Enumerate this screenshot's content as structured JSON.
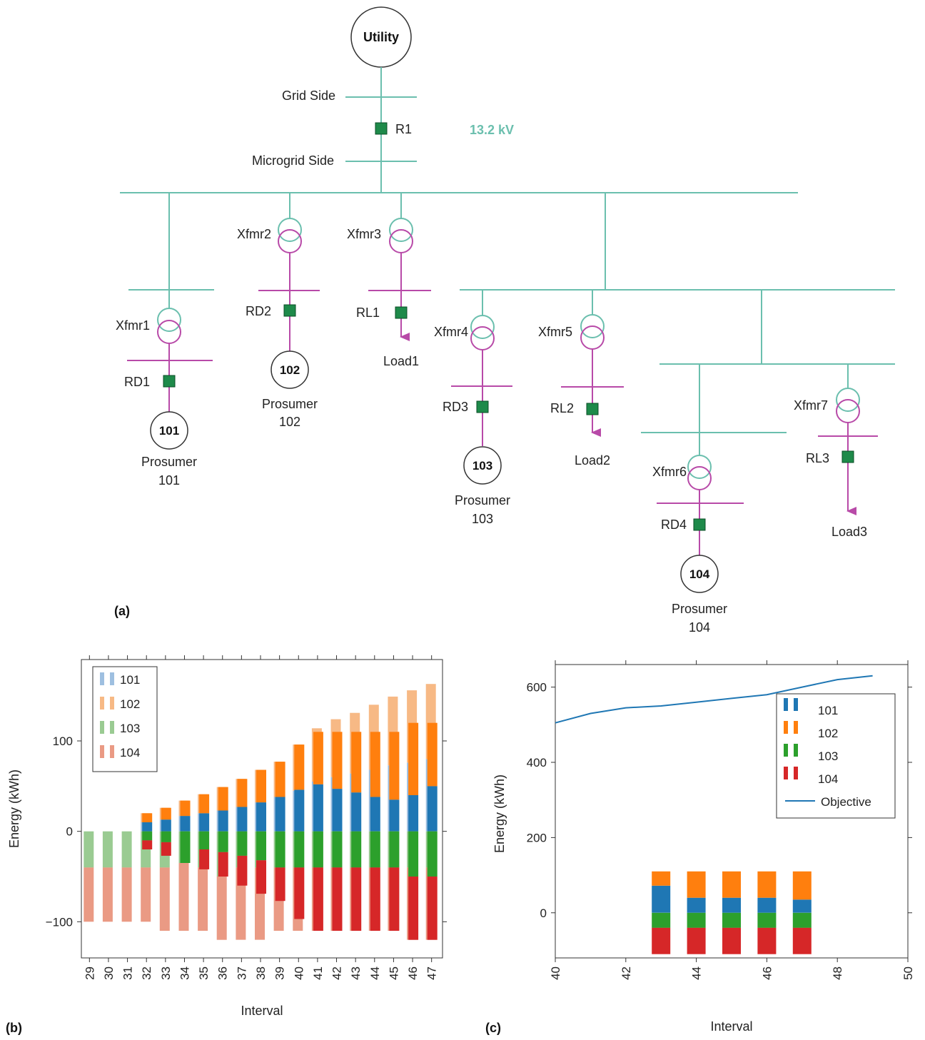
{
  "diagram": {
    "utility_label": "Utility",
    "grid_side_label": "Grid Side",
    "microgrid_side_label": "Microgrid Side",
    "r1_label": "R1",
    "voltage_label": "13.2 kV",
    "transformers": [
      "Xfmr1",
      "Xfmr2",
      "Xfmr3",
      "Xfmr4",
      "Xfmr5",
      "Xfmr6",
      "Xfmr7"
    ],
    "relays": [
      "RD1",
      "RD2",
      "RL1",
      "RD3",
      "RL2",
      "RD4",
      "RL3"
    ],
    "loads": [
      "Load1",
      "Load2",
      "Load3"
    ],
    "prosumer_word": "Prosumer",
    "prosumer_ids": [
      "101",
      "102",
      "103",
      "104"
    ],
    "panel_label": "(a)",
    "colors": {
      "bus": "#6bbfae",
      "branch": "#b84aa8",
      "relay": "#1e8a4a"
    }
  },
  "chart_data": [
    {
      "type": "bar",
      "panel_label": "(b)",
      "xlabel": "Interval",
      "ylabel": "Energy (kWh)",
      "ylim": [
        -140,
        190
      ],
      "yticks": [
        -100,
        0,
        100
      ],
      "ytick_labels": [
        "−100",
        "0",
        "100"
      ],
      "categories": [
        "29",
        "30",
        "31",
        "32",
        "33",
        "34",
        "35",
        "36",
        "37",
        "38",
        "39",
        "40",
        "41",
        "42",
        "43",
        "44",
        "45",
        "46",
        "47"
      ],
      "legend": [
        "101",
        "102",
        "103",
        "104"
      ],
      "legend_position": "top-left",
      "colors": {
        "101": "#1f77b4",
        "102": "#ff7f0e",
        "103": "#2ca02c",
        "104": "#d62728"
      },
      "light_colors": {
        "101": "#9ebfe0",
        "102": "#f7b985",
        "103": "#9acb92",
        "104": "#ea9a84"
      },
      "series_light": [
        {
          "name": "101",
          "values": [
            0,
            0,
            0,
            10,
            13,
            17,
            20,
            23,
            27,
            32,
            38,
            45,
            55,
            60,
            64,
            68,
            73,
            76,
            80
          ]
        },
        {
          "name": "102",
          "values": [
            0,
            0,
            0,
            10,
            13,
            17,
            21,
            26,
            31,
            36,
            39,
            51,
            59,
            64,
            67,
            72,
            76,
            80,
            83
          ]
        },
        {
          "name": "103",
          "values": [
            -40,
            -40,
            -40,
            -40,
            -40,
            -35,
            -40,
            -50,
            -40,
            -40,
            -40,
            -40,
            -40,
            -40,
            -40,
            -40,
            -40,
            -40,
            -40
          ]
        },
        {
          "name": "104",
          "values": [
            -60,
            -60,
            -60,
            -60,
            -70,
            -75,
            -70,
            -70,
            -80,
            -80,
            -70,
            -70,
            -70,
            -70,
            -70,
            -70,
            -70,
            -80,
            -80
          ]
        }
      ],
      "series_solid": [
        {
          "name": "101",
          "values": [
            0,
            0,
            0,
            10,
            13,
            17,
            20,
            23,
            27,
            32,
            38,
            46,
            52,
            47,
            43,
            38,
            35,
            40,
            50
          ]
        },
        {
          "name": "102",
          "values": [
            0,
            0,
            0,
            10,
            13,
            17,
            21,
            26,
            31,
            36,
            39,
            50,
            58,
            63,
            67,
            72,
            75,
            80,
            70
          ]
        },
        {
          "name": "103",
          "values": [
            0,
            0,
            0,
            -10,
            -12,
            -35,
            -20,
            -23,
            -27,
            -32,
            -40,
            -40,
            -40,
            -40,
            -40,
            -40,
            -40,
            -50,
            -50
          ]
        },
        {
          "name": "104",
          "values": [
            0,
            0,
            0,
            -10,
            -15,
            0,
            -22,
            -27,
            -33,
            -37,
            -37,
            -57,
            -70,
            -70,
            -70,
            -70,
            -70,
            -70,
            -70
          ]
        }
      ]
    },
    {
      "type": "bar",
      "panel_label": "(c)",
      "xlabel": "Interval",
      "ylabel": "Energy (kWh)",
      "xlim": [
        40,
        50
      ],
      "xticks": [
        40,
        42,
        44,
        46,
        48,
        50
      ],
      "ylim": [
        -120,
        660
      ],
      "yticks": [
        0,
        200,
        400,
        600
      ],
      "legend": [
        "101",
        "102",
        "103",
        "104",
        "Objective"
      ],
      "legend_position": "top-right",
      "colors": {
        "101": "#1f77b4",
        "102": "#ff7f0e",
        "103": "#2ca02c",
        "104": "#d62728",
        "Objective": "#1f77b4"
      },
      "categories": [
        43,
        44,
        45,
        46,
        47
      ],
      "series": [
        {
          "name": "101",
          "values": [
            72,
            40,
            40,
            40,
            35
          ]
        },
        {
          "name": "102",
          "values": [
            38,
            70,
            70,
            70,
            75
          ]
        },
        {
          "name": "103",
          "values": [
            -40,
            -40,
            -40,
            -40,
            -40
          ]
        },
        {
          "name": "104",
          "values": [
            -70,
            -70,
            -70,
            -70,
            -70
          ]
        }
      ],
      "line": {
        "name": "Objective",
        "x": [
          40,
          41,
          42,
          43,
          44,
          45,
          46,
          47,
          48,
          49
        ],
        "y": [
          505,
          530,
          545,
          550,
          560,
          570,
          580,
          600,
          620,
          630
        ]
      }
    }
  ]
}
